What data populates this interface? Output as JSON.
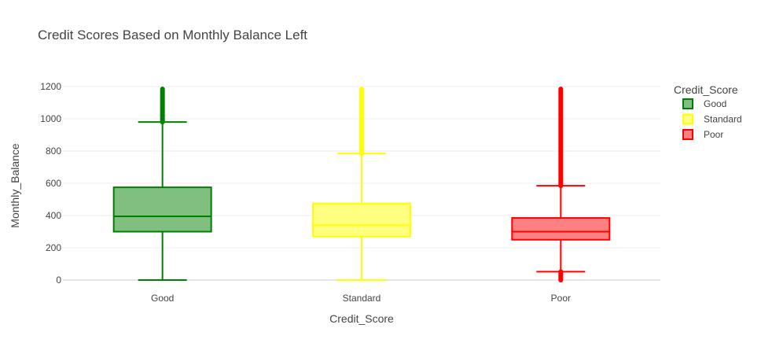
{
  "chart_data": {
    "type": "box",
    "title": "Credit Scores Based on Monthly Balance Left",
    "xlabel": "Credit_Score",
    "ylabel": "Monthly_Balance",
    "ylim": [
      -30,
      1260
    ],
    "yticks": [
      0,
      200,
      400,
      600,
      800,
      1000,
      1200
    ],
    "categories": [
      "Good",
      "Standard",
      "Poor"
    ],
    "grid": true,
    "legend": {
      "title": "Credit_Score",
      "placement": "right"
    },
    "series": [
      {
        "name": "Good",
        "color": "#008000",
        "fill": "#80bf80",
        "lowerfence": 0,
        "q1": 300,
        "median": 395,
        "q3": 575,
        "upperfence": 980,
        "outliers_range": [
          980,
          1185
        ]
      },
      {
        "name": "Standard",
        "color": "#ffff00",
        "fill": "#ffff80",
        "lowerfence": 0,
        "q1": 270,
        "median": 340,
        "q3": 475,
        "upperfence": 785,
        "outliers_range": [
          785,
          1185
        ]
      },
      {
        "name": "Poor",
        "color": "#ff0000",
        "fill": "#ff8080",
        "lowerfence": 52,
        "q1": 250,
        "median": 300,
        "q3": 385,
        "upperfence": 585,
        "outliers_range": [
          585,
          1185
        ],
        "low_outliers_range": [
          0,
          52
        ]
      }
    ]
  }
}
